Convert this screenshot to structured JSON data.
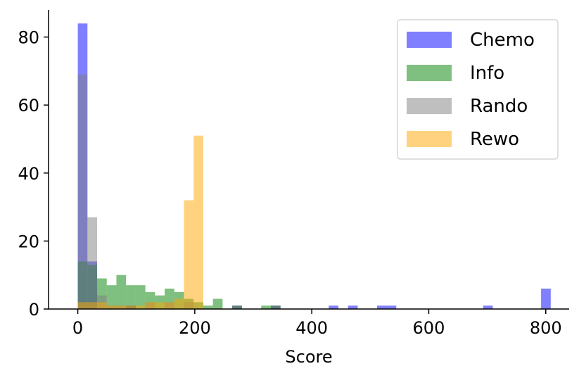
{
  "chart_data": {
    "type": "histogram",
    "xlabel": "Score",
    "ylabel": "",
    "xlim": [
      -50,
      840
    ],
    "ylim": [
      0,
      88
    ],
    "x_ticks": [
      0,
      200,
      400,
      600,
      800
    ],
    "y_ticks": [
      0,
      20,
      40,
      60,
      80
    ],
    "grid": false,
    "legend_position": "top-right",
    "bin_width": 16.5,
    "series": [
      {
        "name": "Chemo",
        "color": "#0000ff",
        "opacity": 0.5,
        "bins": [
          {
            "x": 0,
            "count": 84
          },
          {
            "x": 16.5,
            "count": 14
          },
          {
            "x": 82.5,
            "count": 1
          },
          {
            "x": 264,
            "count": 1
          },
          {
            "x": 330,
            "count": 1
          },
          {
            "x": 429,
            "count": 1
          },
          {
            "x": 462,
            "count": 1
          },
          {
            "x": 511.5,
            "count": 1
          },
          {
            "x": 528,
            "count": 1
          },
          {
            "x": 693,
            "count": 1
          },
          {
            "x": 792,
            "count": 6
          }
        ]
      },
      {
        "name": "Info",
        "color": "#008000",
        "opacity": 0.5,
        "bins": [
          {
            "x": 0,
            "count": 14
          },
          {
            "x": 16.5,
            "count": 13
          },
          {
            "x": 33,
            "count": 9
          },
          {
            "x": 49.5,
            "count": 7
          },
          {
            "x": 66,
            "count": 10
          },
          {
            "x": 82.5,
            "count": 7
          },
          {
            "x": 99,
            "count": 7
          },
          {
            "x": 115.5,
            "count": 5
          },
          {
            "x": 132,
            "count": 4
          },
          {
            "x": 148.5,
            "count": 6
          },
          {
            "x": 165,
            "count": 5
          },
          {
            "x": 181.5,
            "count": 3
          },
          {
            "x": 198,
            "count": 2
          },
          {
            "x": 214.5,
            "count": 1
          },
          {
            "x": 231,
            "count": 3
          },
          {
            "x": 264,
            "count": 1
          },
          {
            "x": 313.5,
            "count": 1
          },
          {
            "x": 330,
            "count": 1
          }
        ]
      },
      {
        "name": "Rando",
        "color": "#808080",
        "opacity": 0.5,
        "bins": [
          {
            "x": 0,
            "count": 69
          },
          {
            "x": 16.5,
            "count": 27
          },
          {
            "x": 33,
            "count": 4
          },
          {
            "x": 49.5,
            "count": 1
          },
          {
            "x": 66,
            "count": 1
          },
          {
            "x": 82.5,
            "count": 1
          },
          {
            "x": 115.5,
            "count": 2
          },
          {
            "x": 148.5,
            "count": 2
          },
          {
            "x": 181.5,
            "count": 2
          },
          {
            "x": 264,
            "count": 1
          },
          {
            "x": 330,
            "count": 1
          }
        ]
      },
      {
        "name": "Rewo",
        "color": "#ffa500",
        "opacity": 0.5,
        "bins": [
          {
            "x": 0,
            "count": 2
          },
          {
            "x": 16.5,
            "count": 2
          },
          {
            "x": 33,
            "count": 2
          },
          {
            "x": 49.5,
            "count": 1
          },
          {
            "x": 66,
            "count": 1
          },
          {
            "x": 82.5,
            "count": 1
          },
          {
            "x": 99,
            "count": 1
          },
          {
            "x": 115.5,
            "count": 2
          },
          {
            "x": 132,
            "count": 2
          },
          {
            "x": 148.5,
            "count": 2
          },
          {
            "x": 165,
            "count": 3
          },
          {
            "x": 181.5,
            "count": 32
          },
          {
            "x": 198,
            "count": 51
          }
        ]
      }
    ]
  }
}
